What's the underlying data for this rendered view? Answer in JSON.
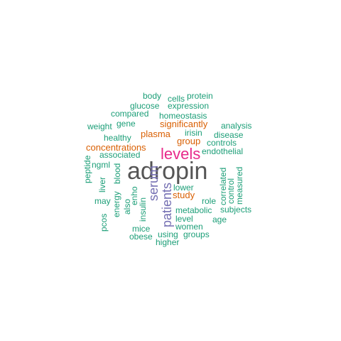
{
  "colors": {
    "teal": "#1b9e77",
    "orange": "#d95f02",
    "purple": "#7570b3",
    "magenta": "#e7298a",
    "gray": "#555555"
  },
  "words": [
    {
      "id": "adropin",
      "text": "adropin",
      "color": "gray"
    },
    {
      "id": "levels",
      "text": "levels",
      "color": "magenta"
    },
    {
      "id": "patients",
      "text": "patients",
      "color": "purple"
    },
    {
      "id": "serum",
      "text": "serum",
      "color": "purple"
    },
    {
      "id": "concentrations",
      "text": "concentrations",
      "color": "orange"
    },
    {
      "id": "significantly",
      "text": "significantly",
      "color": "orange"
    },
    {
      "id": "plasma",
      "text": "plasma",
      "color": "orange"
    },
    {
      "id": "group",
      "text": "group",
      "color": "orange"
    },
    {
      "id": "study",
      "text": "study",
      "color": "orange"
    },
    {
      "id": "body",
      "text": "body",
      "color": "teal"
    },
    {
      "id": "cells",
      "text": "cells",
      "color": "teal"
    },
    {
      "id": "protein",
      "text": "protein",
      "color": "teal"
    },
    {
      "id": "glucose",
      "text": "glucose",
      "color": "teal"
    },
    {
      "id": "expression",
      "text": "expression",
      "color": "teal"
    },
    {
      "id": "compared",
      "text": "compared",
      "color": "teal"
    },
    {
      "id": "homeostasis",
      "text": "homeostasis",
      "color": "teal"
    },
    {
      "id": "weight",
      "text": "weight",
      "color": "teal"
    },
    {
      "id": "gene",
      "text": "gene",
      "color": "teal"
    },
    {
      "id": "analysis",
      "text": "analysis",
      "color": "teal"
    },
    {
      "id": "healthy",
      "text": "healthy",
      "color": "teal"
    },
    {
      "id": "irisin",
      "text": "irisin",
      "color": "teal"
    },
    {
      "id": "disease",
      "text": "disease",
      "color": "teal"
    },
    {
      "id": "controls",
      "text": "controls",
      "color": "teal"
    },
    {
      "id": "associated",
      "text": "associated",
      "color": "teal"
    },
    {
      "id": "endothelial",
      "text": "endothelial",
      "color": "teal"
    },
    {
      "id": "peptide",
      "text": "peptide",
      "color": "teal"
    },
    {
      "id": "ngml",
      "text": "ngml",
      "color": "teal"
    },
    {
      "id": "liver",
      "text": "liver",
      "color": "teal"
    },
    {
      "id": "blood",
      "text": "blood",
      "color": "teal"
    },
    {
      "id": "may",
      "text": "may",
      "color": "teal"
    },
    {
      "id": "energy",
      "text": "energy",
      "color": "teal"
    },
    {
      "id": "also",
      "text": "also",
      "color": "teal"
    },
    {
      "id": "enho",
      "text": "enho",
      "color": "teal"
    },
    {
      "id": "insulin",
      "text": "insulin",
      "color": "teal"
    },
    {
      "id": "pcos",
      "text": "pcos",
      "color": "teal"
    },
    {
      "id": "lower",
      "text": "lower",
      "color": "teal"
    },
    {
      "id": "role",
      "text": "role",
      "color": "teal"
    },
    {
      "id": "metabolic",
      "text": "metabolic",
      "color": "teal"
    },
    {
      "id": "level",
      "text": "level",
      "color": "teal"
    },
    {
      "id": "age",
      "text": "age",
      "color": "teal"
    },
    {
      "id": "women",
      "text": "women",
      "color": "teal"
    },
    {
      "id": "correlated",
      "text": "correlated",
      "color": "teal"
    },
    {
      "id": "control",
      "text": "control",
      "color": "teal"
    },
    {
      "id": "measured",
      "text": "measured",
      "color": "teal"
    },
    {
      "id": "subjects",
      "text": "subjects",
      "color": "teal"
    },
    {
      "id": "mice",
      "text": "mice",
      "color": "teal"
    },
    {
      "id": "using",
      "text": "using",
      "color": "teal"
    },
    {
      "id": "groups",
      "text": "groups",
      "color": "teal"
    },
    {
      "id": "obese",
      "text": "obese",
      "color": "teal"
    },
    {
      "id": "higher",
      "text": "higher",
      "color": "teal"
    }
  ]
}
